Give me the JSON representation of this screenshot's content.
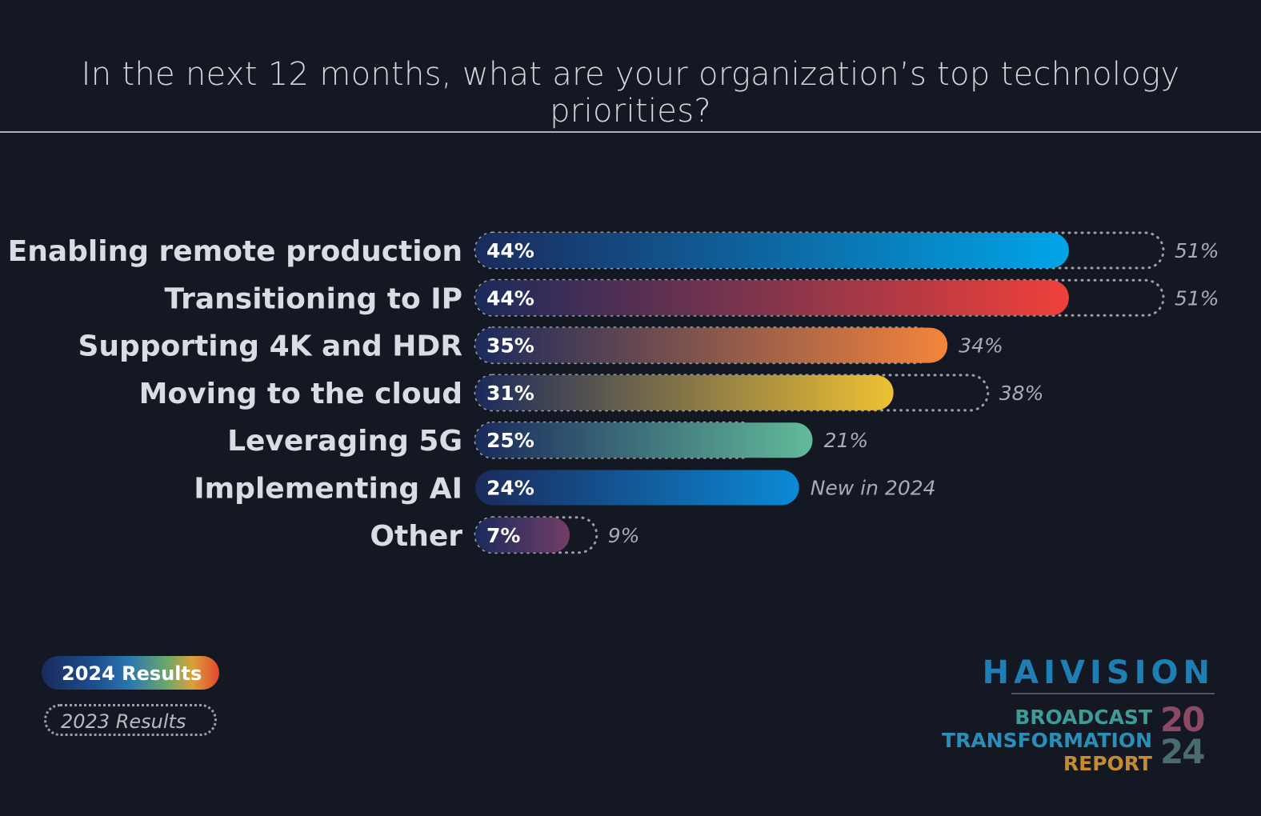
{
  "title": "In the next 12 months, what are your organization’s top technology priorities?",
  "chart_data": {
    "type": "bar",
    "orientation": "horizontal",
    "categories": [
      "Enabling remote production",
      "Transitioning to IP",
      "Supporting 4K and HDR",
      "Moving to the cloud",
      "Leveraging 5G",
      "Implementing AI",
      "Other"
    ],
    "series": [
      {
        "name": "2024 Results",
        "values": [
          44,
          44,
          35,
          31,
          25,
          24,
          7
        ],
        "labels": [
          "44%",
          "44%",
          "35%",
          "31%",
          "25%",
          "24%",
          "7%"
        ]
      },
      {
        "name": "2023 Results",
        "values": [
          51,
          51,
          34,
          38,
          21,
          null,
          9
        ],
        "labels": [
          "51%",
          "51%",
          "34%",
          "38%",
          "21%",
          "New in 2024",
          "9%"
        ]
      }
    ],
    "bar_colors": [
      "#00a5e8",
      "#f0403a",
      "#f5843a",
      "#efc132",
      "#62bb9a",
      "#0a8ad6",
      "#733e66"
    ],
    "xlim": [
      0,
      51
    ],
    "grid": false,
    "legend_position": "bottom-left"
  },
  "legend": {
    "current": "2024 Results",
    "previous": "2023 Results"
  },
  "branding": {
    "company": "HAIVISION",
    "report_line1": "BROADCAST",
    "report_line2": "TRANSFORMATION",
    "report_line3": "REPORT",
    "year_top": "20",
    "year_bottom": "24"
  }
}
